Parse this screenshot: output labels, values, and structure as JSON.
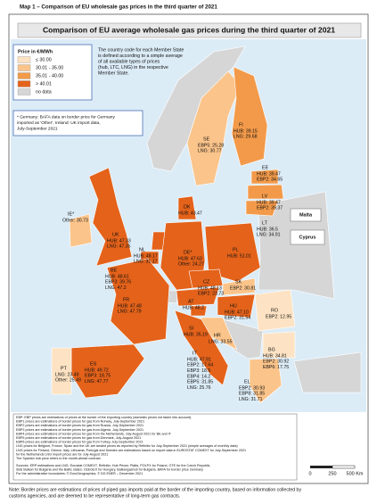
{
  "header": {
    "title": "Map 1 – Comparison of EU wholesale gas prices in the third quarter of 2021"
  },
  "map_title": "Comparison of EU average wholesale gas prices during the third quarter of 2021",
  "legend": {
    "title": "Price in €/MWh",
    "items": [
      {
        "label": "≤ 30.00",
        "color": "#fde3c3"
      },
      {
        "label": "30.01 - 35.00",
        "color": "#fbc48a"
      },
      {
        "label": "35.01 - 40.00",
        "color": "#f39a4a"
      },
      {
        "label": "> 40.01",
        "color": "#e4621a"
      },
      {
        "label": "no data",
        "color": "#d6d6d6"
      }
    ]
  },
  "explanation": [
    "The country code for each Member State",
    "is defined according to a simple average",
    "of all available types of prices",
    "(hub, LTC, LNG) in the respective",
    "Member State."
  ],
  "note_box": [
    "* Germany: BAFA data on border price for Germany",
    "imported as 'Other', Ireland: UK import data,",
    "July-September 2021"
  ],
  "insets": [
    "Malta",
    "Cyprus"
  ],
  "countries": [
    {
      "code": "FI",
      "lines": [
        "HUB: 39.15",
        "LNG: 29.68"
      ]
    },
    {
      "code": "SE",
      "lines": [
        "EBP5: 25.28",
        "LNG: 30.77"
      ]
    },
    {
      "code": "EE",
      "lines": [
        "HUB: 39.47",
        "EBP2: 34.65"
      ]
    },
    {
      "code": "LV",
      "lines": [
        "HUB: 39.47",
        "EBP2: 39.37"
      ]
    },
    {
      "code": "LT",
      "lines": [
        "HUB: 36.5",
        "LNG: 34.91"
      ]
    },
    {
      "code": "DK",
      "lines": [
        "HUB: 43.47"
      ]
    },
    {
      "code": "IE*",
      "lines": [
        "Other: 30.73"
      ]
    },
    {
      "code": "UK",
      "lines": [
        "HUB: 47.33",
        "LNG: 47.35"
      ]
    },
    {
      "code": "NL",
      "lines": [
        "HUB: 48.17",
        "LNG: 31.17"
      ]
    },
    {
      "code": "DE*",
      "lines": [
        "HUB: 47.63",
        "Other: 24.27"
      ]
    },
    {
      "code": "PL",
      "lines": [
        "HUB: 51.01"
      ]
    },
    {
      "code": "BE",
      "lines": [
        "HUB: 48.61",
        "EBP3: 39.76",
        "LNG: 47.2"
      ]
    },
    {
      "code": "CZ",
      "lines": [
        "HUB: 48.13",
        "EBP2: 23.73"
      ]
    },
    {
      "code": "SK",
      "lines": [
        "EBP2: 30.81"
      ]
    },
    {
      "code": "FR",
      "lines": [
        "HUB: 47.48",
        "LNG: 47.79"
      ]
    },
    {
      "code": "AT",
      "lines": [
        "HUB: 48.2"
      ]
    },
    {
      "code": "HU",
      "lines": [
        "HUB: 47.10",
        "EBP2: 31.54"
      ]
    },
    {
      "code": "SI",
      "lines": [
        "HUB: 35.19"
      ]
    },
    {
      "code": "HR",
      "lines": [
        "LNG: 33.55"
      ]
    },
    {
      "code": "RO",
      "lines": [
        "EBP2: 12.95"
      ]
    },
    {
      "code": "BG",
      "lines": [
        "HUB: 34.81",
        "EBP2: 30.92",
        "EBP6: 17.75"
      ]
    },
    {
      "code": "IT",
      "lines": [
        "HUB: 47.91",
        "EBP2: 17.64",
        "EBP3: 18.5",
        "EBP4: 14.2",
        "EBP5: 31.85",
        "LNG: 25.76"
      ]
    },
    {
      "code": "ES",
      "lines": [
        "HUB: 49.72",
        "EBP3: 18.75",
        "LNG: 47.77"
      ]
    },
    {
      "code": "PT",
      "lines": [
        "LNG: 23.49",
        "Other: 25.49"
      ]
    },
    {
      "code": "EL",
      "lines": [
        "EBP2: 30.93",
        "EBP8: 31.85",
        "LNG: 31.71"
      ]
    }
  ],
  "footnotes": [
    "EBP: EBP prices are estimations of prices at the border of the importing country (domestic prices not taken into account).",
    "EBP1 prices are estimations of border prices for gas from Norway, July-September 2021",
    "EBP2 prices are estimations of border prices for gas from Russia, July-September 2021",
    "EBP3 prices are estimations of border prices for gas from Algeria, July-September 2021",
    "EBP4 prices are estimations of border prices for gas from the Netherlands, July-August 2021 for BE and IT",
    "EBP5 prices are estimations of border prices for gas from Denmark, July-August 2021",
    "EBP6 prices are estimations of border prices for gas from Turkey, July-September 2021",
    "LNG prices for Belgium, France, Spain and the UK are landed prices as reported by Refinitiv for July-September 2021 (simple averages of monthly data)",
    "LNG prices for Finland, Greece, Italy, Lithuania, Portugal and Sweden are estimations based on import data in EUROSTAT COMEXT for July-September 2021",
    " for the Netherlands LNG import prices are for July-August 2021",
    "The Spanish hub price refers to the month-ahead contract."
  ],
  "sources": [
    "Sources: ERP estimations and LNG: Eurostat COMEXT, Refinitiv; Hub Prices: Platts, POLPX for Poland, OTE for the Czech Republic,",
    "SEE Balkan for Bulgaria and the Baltic states: CEEGEX for Hungary, Balkangashub for Bulgaria, BAFA for border price Germany",
    "For the administrative boundaries: © EuroGeographics; © DG ENER – December 2021"
  ],
  "scale_bar": {
    "labels": [
      "0",
      "250",
      "500 Km"
    ]
  },
  "caption": [
    "Note: Border prices are estimations of prices of piped gas imports paid at the border of the importing country, based on information collected by",
    "customs agencies, and are deemed to be representative of long-term gas contracts."
  ]
}
